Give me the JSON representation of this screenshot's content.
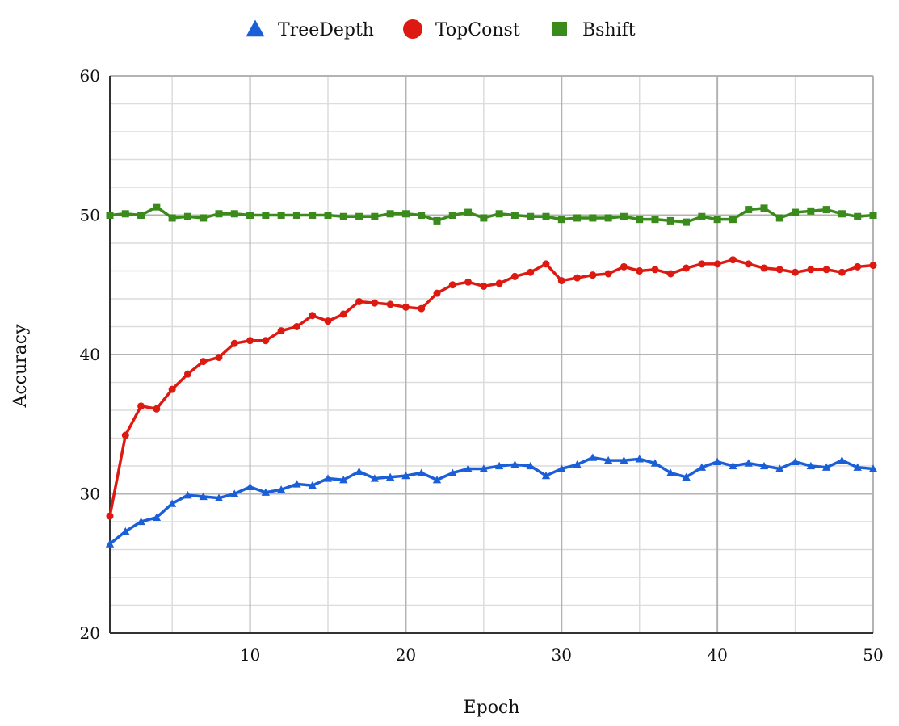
{
  "chart_data": {
    "type": "line",
    "title": "",
    "xlabel": "Epoch",
    "ylabel": "Accuracy",
    "xlim": [
      1,
      50
    ],
    "ylim": [
      20,
      60
    ],
    "x_ticks": [
      10,
      20,
      30,
      40,
      50
    ],
    "y_ticks": [
      20,
      30,
      40,
      50,
      60
    ],
    "x_minor_step": 5,
    "y_minor_step": 2,
    "grid": true,
    "legend_position": "top-center",
    "x": [
      1,
      2,
      3,
      4,
      5,
      6,
      7,
      8,
      9,
      10,
      11,
      12,
      13,
      14,
      15,
      16,
      17,
      18,
      19,
      20,
      21,
      22,
      23,
      24,
      25,
      26,
      27,
      28,
      29,
      30,
      31,
      32,
      33,
      34,
      35,
      36,
      37,
      38,
      39,
      40,
      41,
      42,
      43,
      44,
      45,
      46,
      47,
      48,
      49,
      50
    ],
    "series": [
      {
        "name": "TreeDepth",
        "color": "#1a5fd8",
        "marker": "triangle",
        "values": [
          26.4,
          27.3,
          28.0,
          28.3,
          29.3,
          29.9,
          29.8,
          29.7,
          30.0,
          30.5,
          30.1,
          30.3,
          30.7,
          30.6,
          31.1,
          31.0,
          31.6,
          31.1,
          31.2,
          31.3,
          31.5,
          31.0,
          31.5,
          31.8,
          31.8,
          32.0,
          32.1,
          32.0,
          31.3,
          31.8,
          32.1,
          32.6,
          32.4,
          32.4,
          32.5,
          32.2,
          31.5,
          31.2,
          31.9,
          32.3,
          32.0,
          32.2,
          32.0,
          31.8,
          32.3,
          32.0,
          31.9,
          32.4,
          31.9,
          31.8
        ]
      },
      {
        "name": "TopConst",
        "color": "#dd1a12",
        "marker": "circle",
        "values": [
          28.4,
          34.2,
          36.3,
          36.1,
          37.5,
          38.6,
          39.5,
          39.8,
          40.8,
          41.0,
          41.0,
          41.7,
          42.0,
          42.8,
          42.4,
          42.9,
          43.8,
          43.7,
          43.6,
          43.4,
          43.3,
          44.4,
          45.0,
          45.2,
          44.9,
          45.1,
          45.6,
          45.9,
          46.5,
          45.3,
          45.5,
          45.7,
          45.8,
          46.3,
          46.0,
          46.1,
          45.8,
          46.2,
          46.5,
          46.5,
          46.8,
          46.5,
          46.2,
          46.1,
          45.9,
          46.1,
          46.1,
          45.9,
          46.3,
          46.4
        ]
      },
      {
        "name": "Bshift",
        "color": "#3a8a1c",
        "marker": "square",
        "values": [
          50.0,
          50.1,
          50.0,
          50.6,
          49.8,
          49.9,
          49.8,
          50.1,
          50.1,
          50.0,
          50.0,
          50.0,
          50.0,
          50.0,
          50.0,
          49.9,
          49.9,
          49.9,
          50.1,
          50.1,
          50.0,
          49.6,
          50.0,
          50.2,
          49.8,
          50.1,
          50.0,
          49.9,
          49.9,
          49.7,
          49.8,
          49.8,
          49.8,
          49.9,
          49.7,
          49.7,
          49.6,
          49.5,
          49.9,
          49.7,
          49.7,
          50.4,
          50.5,
          49.8,
          50.2,
          50.3,
          50.4,
          50.1,
          49.9,
          50.0
        ]
      }
    ]
  }
}
